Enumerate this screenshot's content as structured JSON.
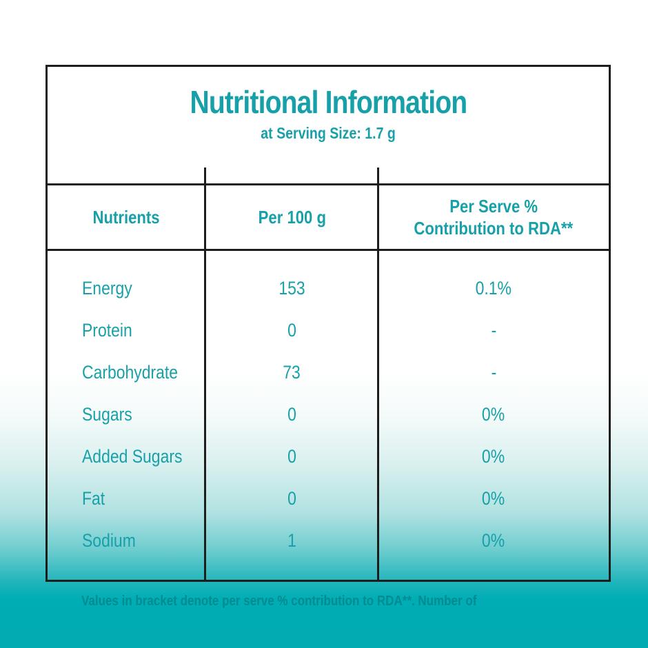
{
  "colors": {
    "accent_teal": "#18a0a9",
    "background_teal": "#00adb4",
    "border_black": "#1d1d1b"
  },
  "table": {
    "title": "Nutritional Information",
    "subtitle": "at Serving Size: 1.7 g",
    "header": {
      "col1": "Nutrients",
      "col2": "Per 100 g",
      "col3_line1": "Per Serve %",
      "col3_line2": "Contribution to RDA**"
    },
    "rows": [
      {
        "nutrient": "Energy",
        "per_100g": "153",
        "per_serve_rda": "0.1%"
      },
      {
        "nutrient": "Protein",
        "per_100g": "0",
        "per_serve_rda": "-"
      },
      {
        "nutrient": "Carbohydrate",
        "per_100g": "73",
        "per_serve_rda": "-"
      },
      {
        "nutrient": "Sugars",
        "per_100g": "0",
        "per_serve_rda": "0%"
      },
      {
        "nutrient": "Added Sugars",
        "per_100g": "0",
        "per_serve_rda": "0%"
      },
      {
        "nutrient": "Fat",
        "per_100g": "0",
        "per_serve_rda": "0%"
      },
      {
        "nutrient": "Sodium",
        "per_100g": "1",
        "per_serve_rda": "0%"
      }
    ]
  },
  "footnote": {
    "text": "Values in bracket denote per serve % contribution to RDA**. Number of"
  }
}
